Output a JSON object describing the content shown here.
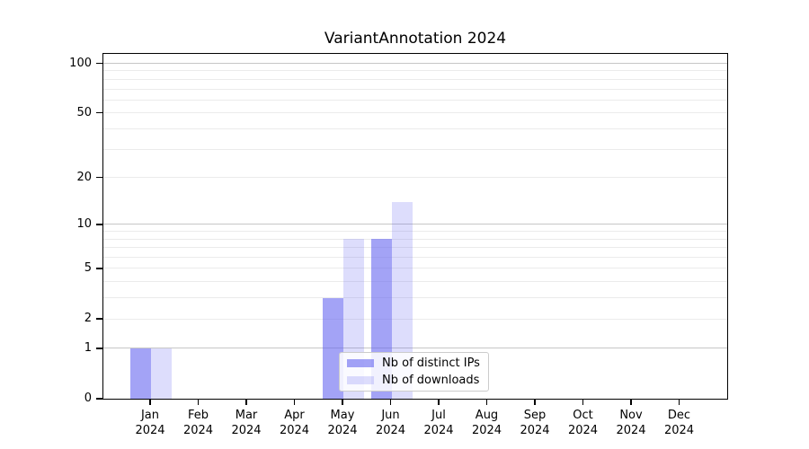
{
  "chart_data": {
    "type": "bar",
    "title": "VariantAnnotation 2024",
    "categories": [
      "Jan 2024",
      "Feb 2024",
      "Mar 2024",
      "Apr 2024",
      "May 2024",
      "Jun 2024",
      "Jul 2024",
      "Aug 2024",
      "Sep 2024",
      "Oct 2024",
      "Nov 2024",
      "Dec 2024"
    ],
    "series": [
      {
        "name": "Nb of distinct IPs",
        "color": "rgba(102,102,240,0.60)",
        "values": [
          1,
          0,
          0,
          0,
          3,
          8,
          0,
          0,
          0,
          0,
          0,
          0
        ]
      },
      {
        "name": "Nb of downloads",
        "color": "rgba(102,102,240,0.22)",
        "values": [
          1,
          0,
          0,
          0,
          8,
          14,
          0,
          0,
          0,
          0,
          0,
          0
        ]
      }
    ],
    "yscale": "log1p",
    "ylim": [
      0,
      114
    ],
    "yticks": [
      0,
      1,
      2,
      5,
      10,
      20,
      50,
      100
    ],
    "ytick_labels": [
      "0",
      "1",
      "2",
      "5",
      "10",
      "20",
      "50",
      "100"
    ],
    "major_gridlines": [
      1,
      10,
      100
    ],
    "minor_gridlines": [
      2,
      3,
      4,
      5,
      6,
      7,
      8,
      9,
      20,
      30,
      40,
      50,
      60,
      70,
      80,
      90
    ],
    "grid": true,
    "legend_position": "lower center",
    "xlabel": "",
    "ylabel": ""
  },
  "colors": {
    "bar_distinct_ips": "rgba(102,102,240,0.60)",
    "bar_downloads": "rgba(102,102,240,0.22)",
    "major_grid": "#c6c6c6",
    "minor_grid": "#ebebeb",
    "axis": "#000000",
    "legend_border": "#cccccc",
    "background": "#ffffff"
  }
}
